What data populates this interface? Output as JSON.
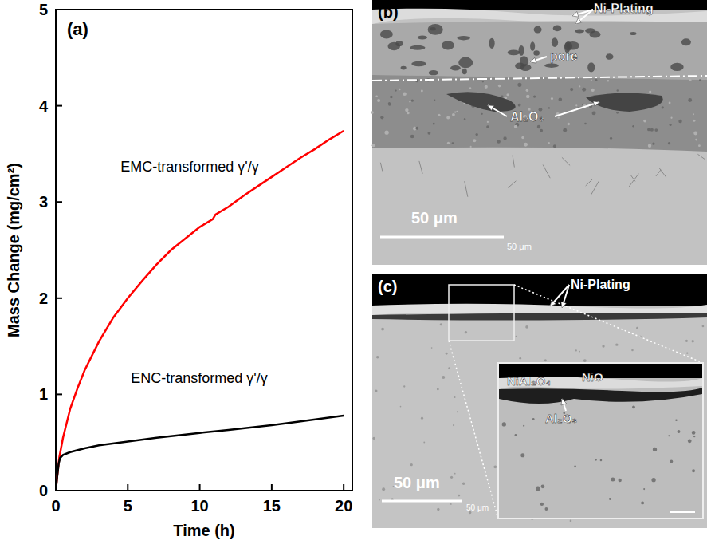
{
  "chart_data": {
    "type": "line",
    "panel_label": "(a)",
    "x_label": "Time (h)",
    "y_label": "Mass Change (mg/cm²)",
    "xlim": [
      0,
      20.6
    ],
    "ylim": [
      0,
      5
    ],
    "xticks": [
      0,
      5,
      10,
      15,
      20
    ],
    "yticks": [
      0,
      1,
      2,
      3,
      4,
      5
    ],
    "grid": false,
    "series": [
      {
        "name": "EMC-transformed γ'/γ",
        "color": "#ff0000",
        "line_style": "solid",
        "x": [
          0,
          0.1,
          0.25,
          0.5,
          1,
          1.5,
          2,
          3,
          4,
          5,
          6,
          7,
          8,
          9,
          10,
          10.9,
          11.1,
          12,
          13,
          14,
          15,
          16,
          17,
          18,
          19,
          20
        ],
        "values": [
          0,
          0.15,
          0.35,
          0.55,
          0.85,
          1.06,
          1.25,
          1.55,
          1.8,
          2.0,
          2.18,
          2.35,
          2.5,
          2.62,
          2.74,
          2.82,
          2.87,
          2.95,
          3.06,
          3.16,
          3.26,
          3.36,
          3.46,
          3.55,
          3.65,
          3.74
        ]
      },
      {
        "name": "ENC-transformed γ'/γ",
        "color": "#000000",
        "line_style": "solid",
        "x": [
          0,
          0.1,
          0.2,
          0.3,
          0.5,
          1,
          2,
          3,
          5,
          7,
          10,
          12,
          15,
          17,
          20
        ],
        "values": [
          0,
          0.15,
          0.28,
          0.34,
          0.37,
          0.4,
          0.44,
          0.47,
          0.51,
          0.55,
          0.6,
          0.63,
          0.68,
          0.72,
          0.78
        ]
      }
    ]
  },
  "micrographs": [
    {
      "panel_label": "(b)",
      "labels": [
        "Ni-Plating",
        "pore",
        "Al₂O₃"
      ],
      "scale_bar": "50 μm",
      "scale_text": "50 μm"
    },
    {
      "panel_label": "(c)",
      "labels": [
        "Ni-Plating"
      ],
      "inset_labels": [
        "NiAl₂O₄",
        "NiO",
        "Al₂O₃"
      ],
      "scale_bar": "50 μm",
      "scale_text": "50 μm"
    }
  ]
}
